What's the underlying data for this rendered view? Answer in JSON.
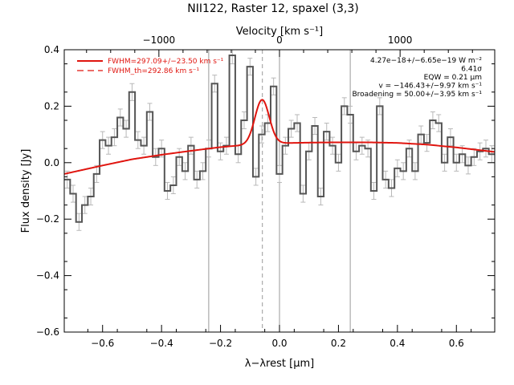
{
  "chart_data": {
    "type": "line",
    "title": "NII122, Raster 12, spaxel (3,3)",
    "xlabel": "λ−λrest [μm]",
    "ylabel": "Flux density [Jy]",
    "top_axis_label": "Velocity [km s⁻¹]",
    "xlim": [
      -0.73,
      0.73
    ],
    "ylim": [
      -0.6,
      0.4
    ],
    "x_ticks": [
      -0.6,
      -0.4,
      -0.2,
      0.0,
      0.2,
      0.4,
      0.6
    ],
    "x_tick_labels": [
      "−0.6",
      "−0.4",
      "−0.2",
      "0.0",
      "0.2",
      "0.4",
      "0.6"
    ],
    "y_ticks": [
      -0.6,
      -0.4,
      -0.2,
      0.0,
      0.2,
      0.4
    ],
    "y_tick_labels": [
      "−0.6",
      "−0.4",
      "−0.2",
      "0.0",
      "0.2",
      "0.4"
    ],
    "top_ticks_kms": [
      -1000,
      0,
      1000
    ],
    "top_tick_labels": [
      "−1000",
      "0",
      "1000"
    ],
    "grid": false,
    "legend_position": "top-left",
    "legend": [
      {
        "label": "FWHM=297.09+/−23.50 km s⁻¹",
        "style": "solid"
      },
      {
        "label": "FWHM_th=292.86 km s⁻¹",
        "style": "dashed"
      }
    ],
    "annotations": [
      "4.27e−18+/−6.65e−19 W m⁻²",
      "6.41σ",
      "EQW = 0.21 μm",
      "v = −146.43+/−9.97 km s⁻¹",
      "Broadening = 50.00+/−3.95 km s⁻¹"
    ],
    "vertical_lines": {
      "solid": [
        -0.24,
        0.0,
        0.24
      ],
      "dashed": [
        -0.058
      ]
    },
    "series": [
      {
        "name": "spectrum",
        "style": "step",
        "color": "#555555",
        "x": [
          -0.72,
          -0.7,
          -0.68,
          -0.66,
          -0.64,
          -0.62,
          -0.6,
          -0.58,
          -0.56,
          -0.54,
          -0.52,
          -0.5,
          -0.48,
          -0.46,
          -0.44,
          -0.42,
          -0.4,
          -0.38,
          -0.36,
          -0.34,
          -0.32,
          -0.3,
          -0.28,
          -0.26,
          -0.24,
          -0.22,
          -0.2,
          -0.18,
          -0.16,
          -0.14,
          -0.12,
          -0.1,
          -0.08,
          -0.06,
          -0.04,
          -0.02,
          0.0,
          0.02,
          0.04,
          0.06,
          0.08,
          0.1,
          0.12,
          0.14,
          0.16,
          0.18,
          0.2,
          0.22,
          0.24,
          0.26,
          0.28,
          0.3,
          0.32,
          0.34,
          0.36,
          0.38,
          0.4,
          0.42,
          0.44,
          0.46,
          0.48,
          0.5,
          0.52,
          0.54,
          0.56,
          0.58,
          0.6,
          0.62,
          0.64,
          0.66,
          0.68,
          0.7,
          0.72
        ],
        "y": [
          -0.06,
          -0.11,
          -0.21,
          -0.15,
          -0.12,
          -0.04,
          0.08,
          0.06,
          0.09,
          0.16,
          0.12,
          0.25,
          0.08,
          0.06,
          0.18,
          0.02,
          0.05,
          -0.1,
          -0.08,
          0.02,
          -0.03,
          0.06,
          -0.06,
          -0.03,
          0.05,
          0.28,
          0.04,
          0.06,
          0.38,
          0.03,
          0.15,
          0.34,
          -0.05,
          0.1,
          0.14,
          0.27,
          -0.04,
          0.06,
          0.12,
          0.14,
          -0.11,
          0.04,
          0.13,
          -0.12,
          0.11,
          0.06,
          0.0,
          0.2,
          0.17,
          0.04,
          0.06,
          0.05,
          -0.1,
          0.2,
          -0.06,
          -0.09,
          -0.02,
          -0.03,
          0.05,
          -0.03,
          0.1,
          0.07,
          0.15,
          0.14,
          0.0,
          0.09,
          0.0,
          0.03,
          -0.01,
          0.02,
          0.04,
          0.05,
          0.03
        ],
        "yerr": 0.03
      },
      {
        "name": "FWHM=297.09+/−23.50 km s⁻¹",
        "style": "line",
        "color": "#e0150f",
        "baseline_x": [
          -0.73,
          -0.6,
          -0.5,
          -0.4,
          -0.3,
          -0.2,
          -0.1,
          0.0,
          0.1,
          0.2,
          0.3,
          0.4,
          0.5,
          0.6,
          0.73
        ],
        "baseline_y": [
          -0.04,
          -0.01,
          0.012,
          0.028,
          0.042,
          0.055,
          0.064,
          0.069,
          0.071,
          0.072,
          0.072,
          0.07,
          0.064,
          0.054,
          0.038
        ],
        "gaussian": {
          "center": -0.059,
          "amplitude": 0.157,
          "fwhm": 0.057
        }
      }
    ]
  }
}
